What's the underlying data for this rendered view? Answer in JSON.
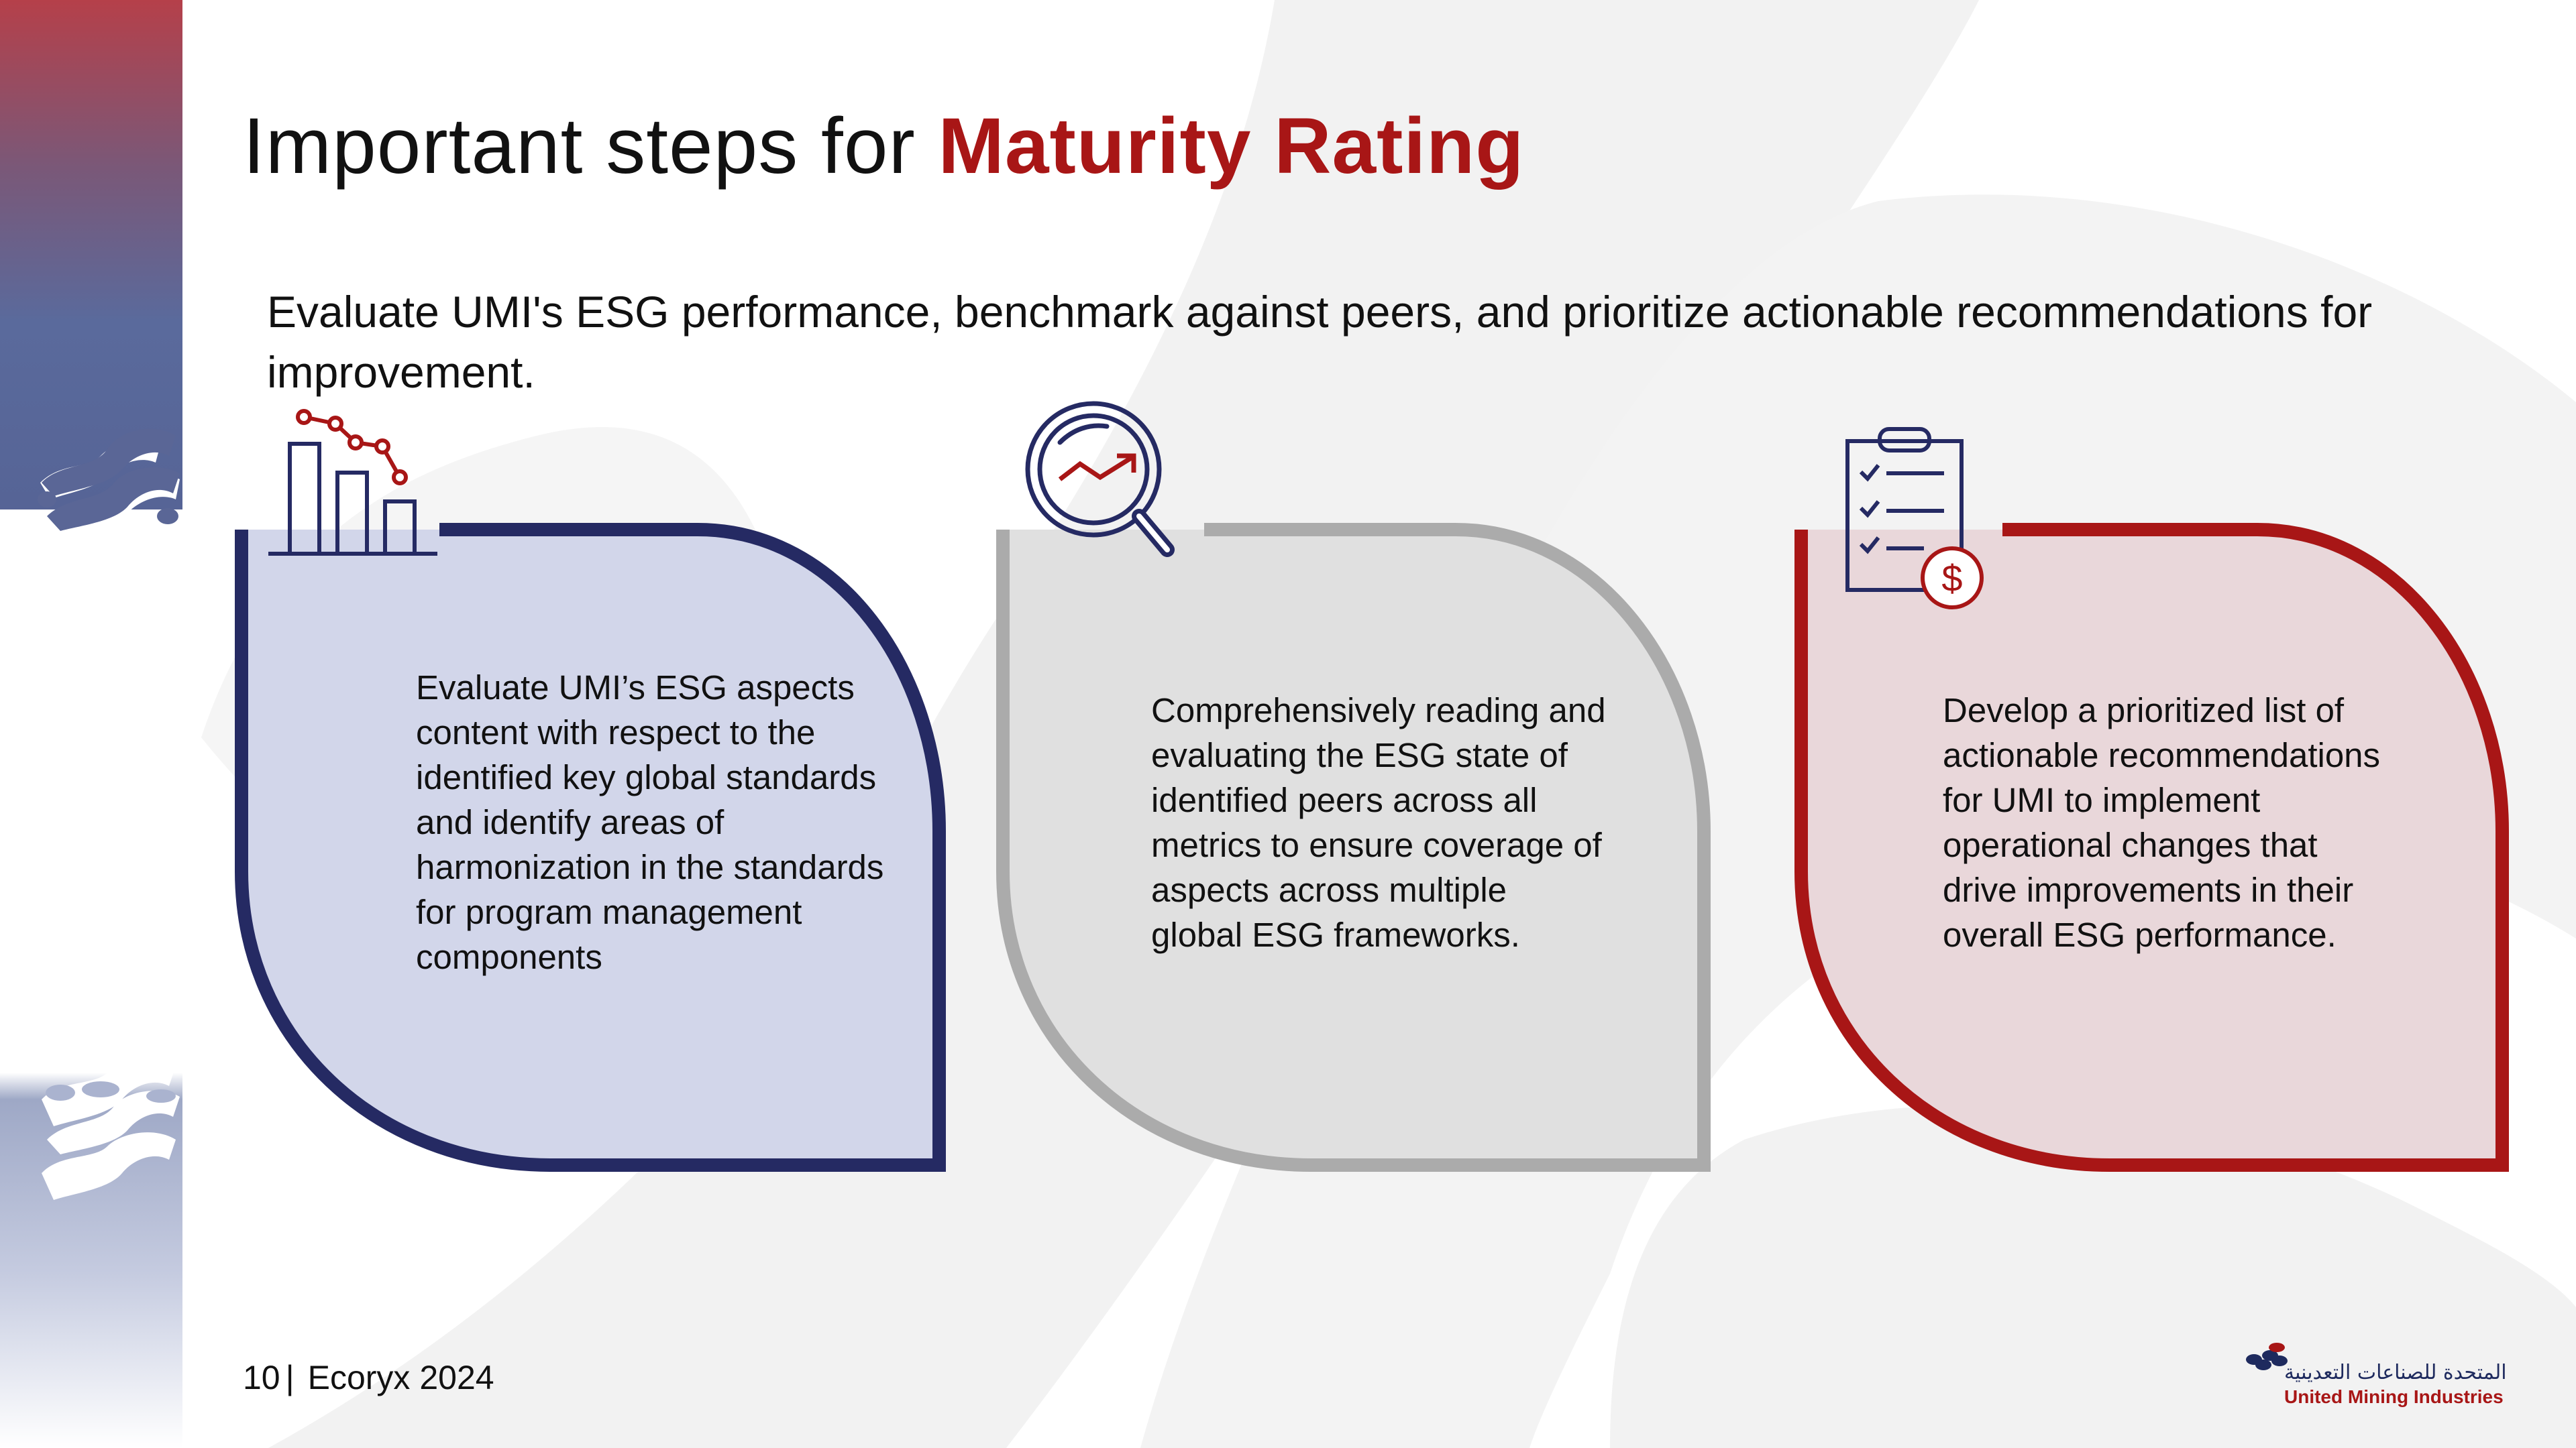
{
  "title": {
    "prefix": "Important steps for ",
    "accent": "Maturity Rating"
  },
  "subtitle": "Evaluate UMI's ESG performance, benchmark against peers, and prioritize actionable recommendations for improvement.",
  "cards": [
    {
      "text": "Evaluate UMI’s ESG aspects content with respect to the identified key global standards and identify areas of harmonization in the standards for program management components",
      "icon": "bar-chart-decline-icon",
      "border_color": "#252a63",
      "fill_color": "#d2d6ea"
    },
    {
      "text": "Comprehensively reading and evaluating the ESG state of identified peers across all metrics to ensure coverage of aspects across multiple global ESG frameworks.",
      "icon": "magnifier-trend-icon",
      "border_color": "#ababab",
      "fill_color": "#e0e0e0"
    },
    {
      "text": "Develop a prioritized list of actionable recommendations for UMI to implement operational changes that  drive improvements in their overall ESG performance.",
      "icon": "clipboard-dollar-icon",
      "border_color": "#a81616",
      "fill_color": "#e9d7da"
    }
  ],
  "footer": {
    "page_number": "10",
    "separator": "|",
    "company": "Ecoryx 2024"
  },
  "logo": {
    "arabic": "المتحدة للصناعات التعدينية",
    "english": "United Mining Industries"
  },
  "colors": {
    "accent_red": "#a81616",
    "navy": "#252a63",
    "gray": "#ababab"
  }
}
